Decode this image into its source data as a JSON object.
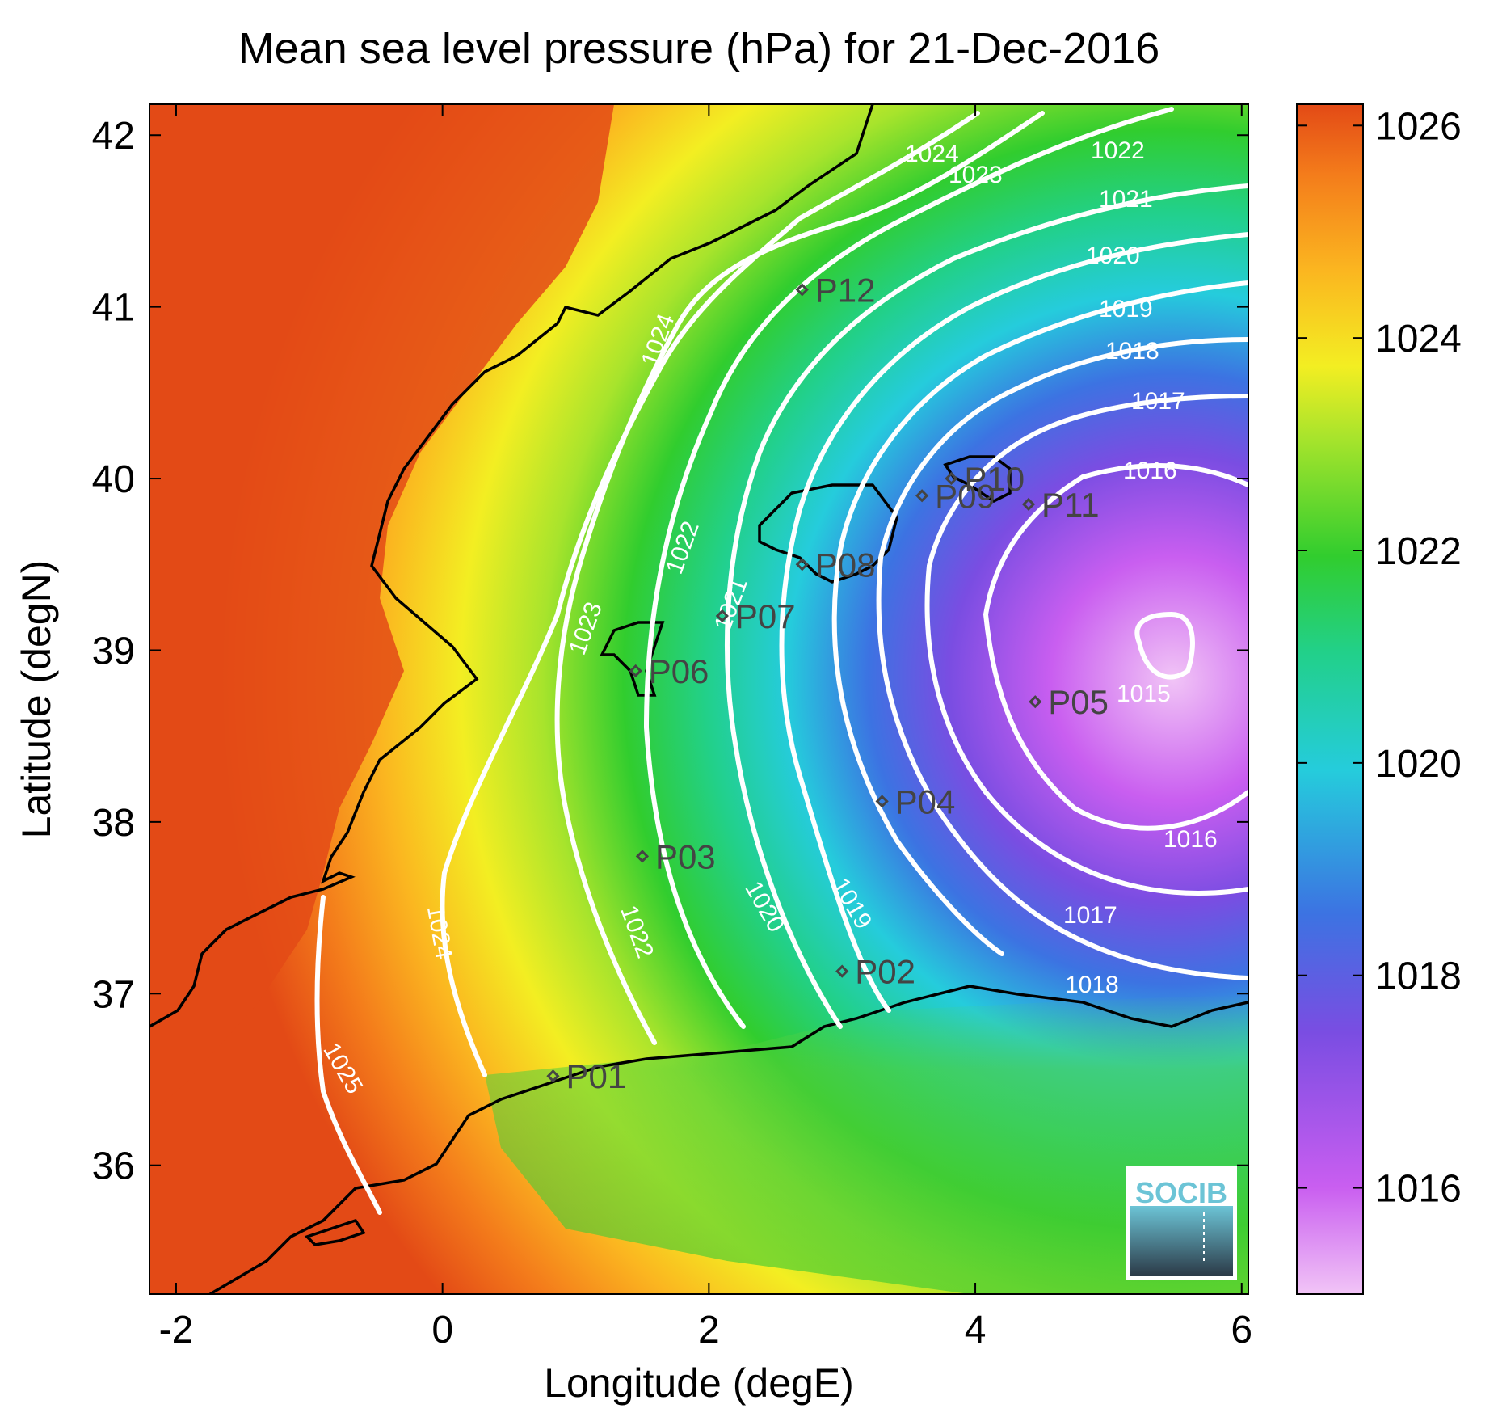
{
  "title": "Mean sea level pressure (hPa) for 21-Dec-2016",
  "xlabel": "Longitude (degE)",
  "ylabel": "Latitude (degN)",
  "x_ticks": [
    "-2",
    "0",
    "2",
    "4",
    "6"
  ],
  "y_ticks": [
    "36",
    "37",
    "38",
    "39",
    "40",
    "41",
    "42"
  ],
  "colorbar_ticks": [
    "1016",
    "1018",
    "1020",
    "1022",
    "1024",
    "1026"
  ],
  "logo_text": "SOCIB",
  "colors": {
    "land_high": "#e34a16",
    "contour": "#ffffff",
    "coast": "#000000",
    "station": "#444444",
    "logo_accent": "#6cc4d6"
  },
  "chart_data": {
    "type": "heatmap",
    "title": "Mean sea level pressure (hPa) for 21-Dec-2016",
    "xlabel": "Longitude (degE)",
    "ylabel": "Latitude (degN)",
    "xlim": [
      -2.2,
      6.05
    ],
    "ylim": [
      35.25,
      42.18
    ],
    "colorbar": {
      "range": [
        1015.0,
        1026.2
      ],
      "ticks": [
        1016,
        1018,
        1020,
        1022,
        1024,
        1026
      ]
    },
    "contour_levels": [
      1015,
      1016,
      1017,
      1018,
      1019,
      1020,
      1021,
      1022,
      1023,
      1024,
      1025
    ],
    "low_center": {
      "lon": 5.3,
      "lat": 38.9,
      "value": 1015
    },
    "stations": [
      {
        "name": "P01",
        "lon": 0.83,
        "lat": 36.52
      },
      {
        "name": "P02",
        "lon": 3.0,
        "lat": 37.13
      },
      {
        "name": "P03",
        "lon": 1.5,
        "lat": 37.8
      },
      {
        "name": "P04",
        "lon": 3.3,
        "lat": 38.12
      },
      {
        "name": "P05",
        "lon": 4.45,
        "lat": 38.7
      },
      {
        "name": "P06",
        "lon": 1.45,
        "lat": 38.88
      },
      {
        "name": "P07",
        "lon": 2.1,
        "lat": 39.2
      },
      {
        "name": "P08",
        "lon": 2.7,
        "lat": 39.5
      },
      {
        "name": "P09",
        "lon": 3.6,
        "lat": 39.9
      },
      {
        "name": "P10",
        "lon": 3.82,
        "lat": 40.0
      },
      {
        "name": "P11",
        "lon": 4.4,
        "lat": 39.85
      },
      {
        "name": "P12",
        "lon": 2.7,
        "lat": 41.1
      }
    ]
  }
}
